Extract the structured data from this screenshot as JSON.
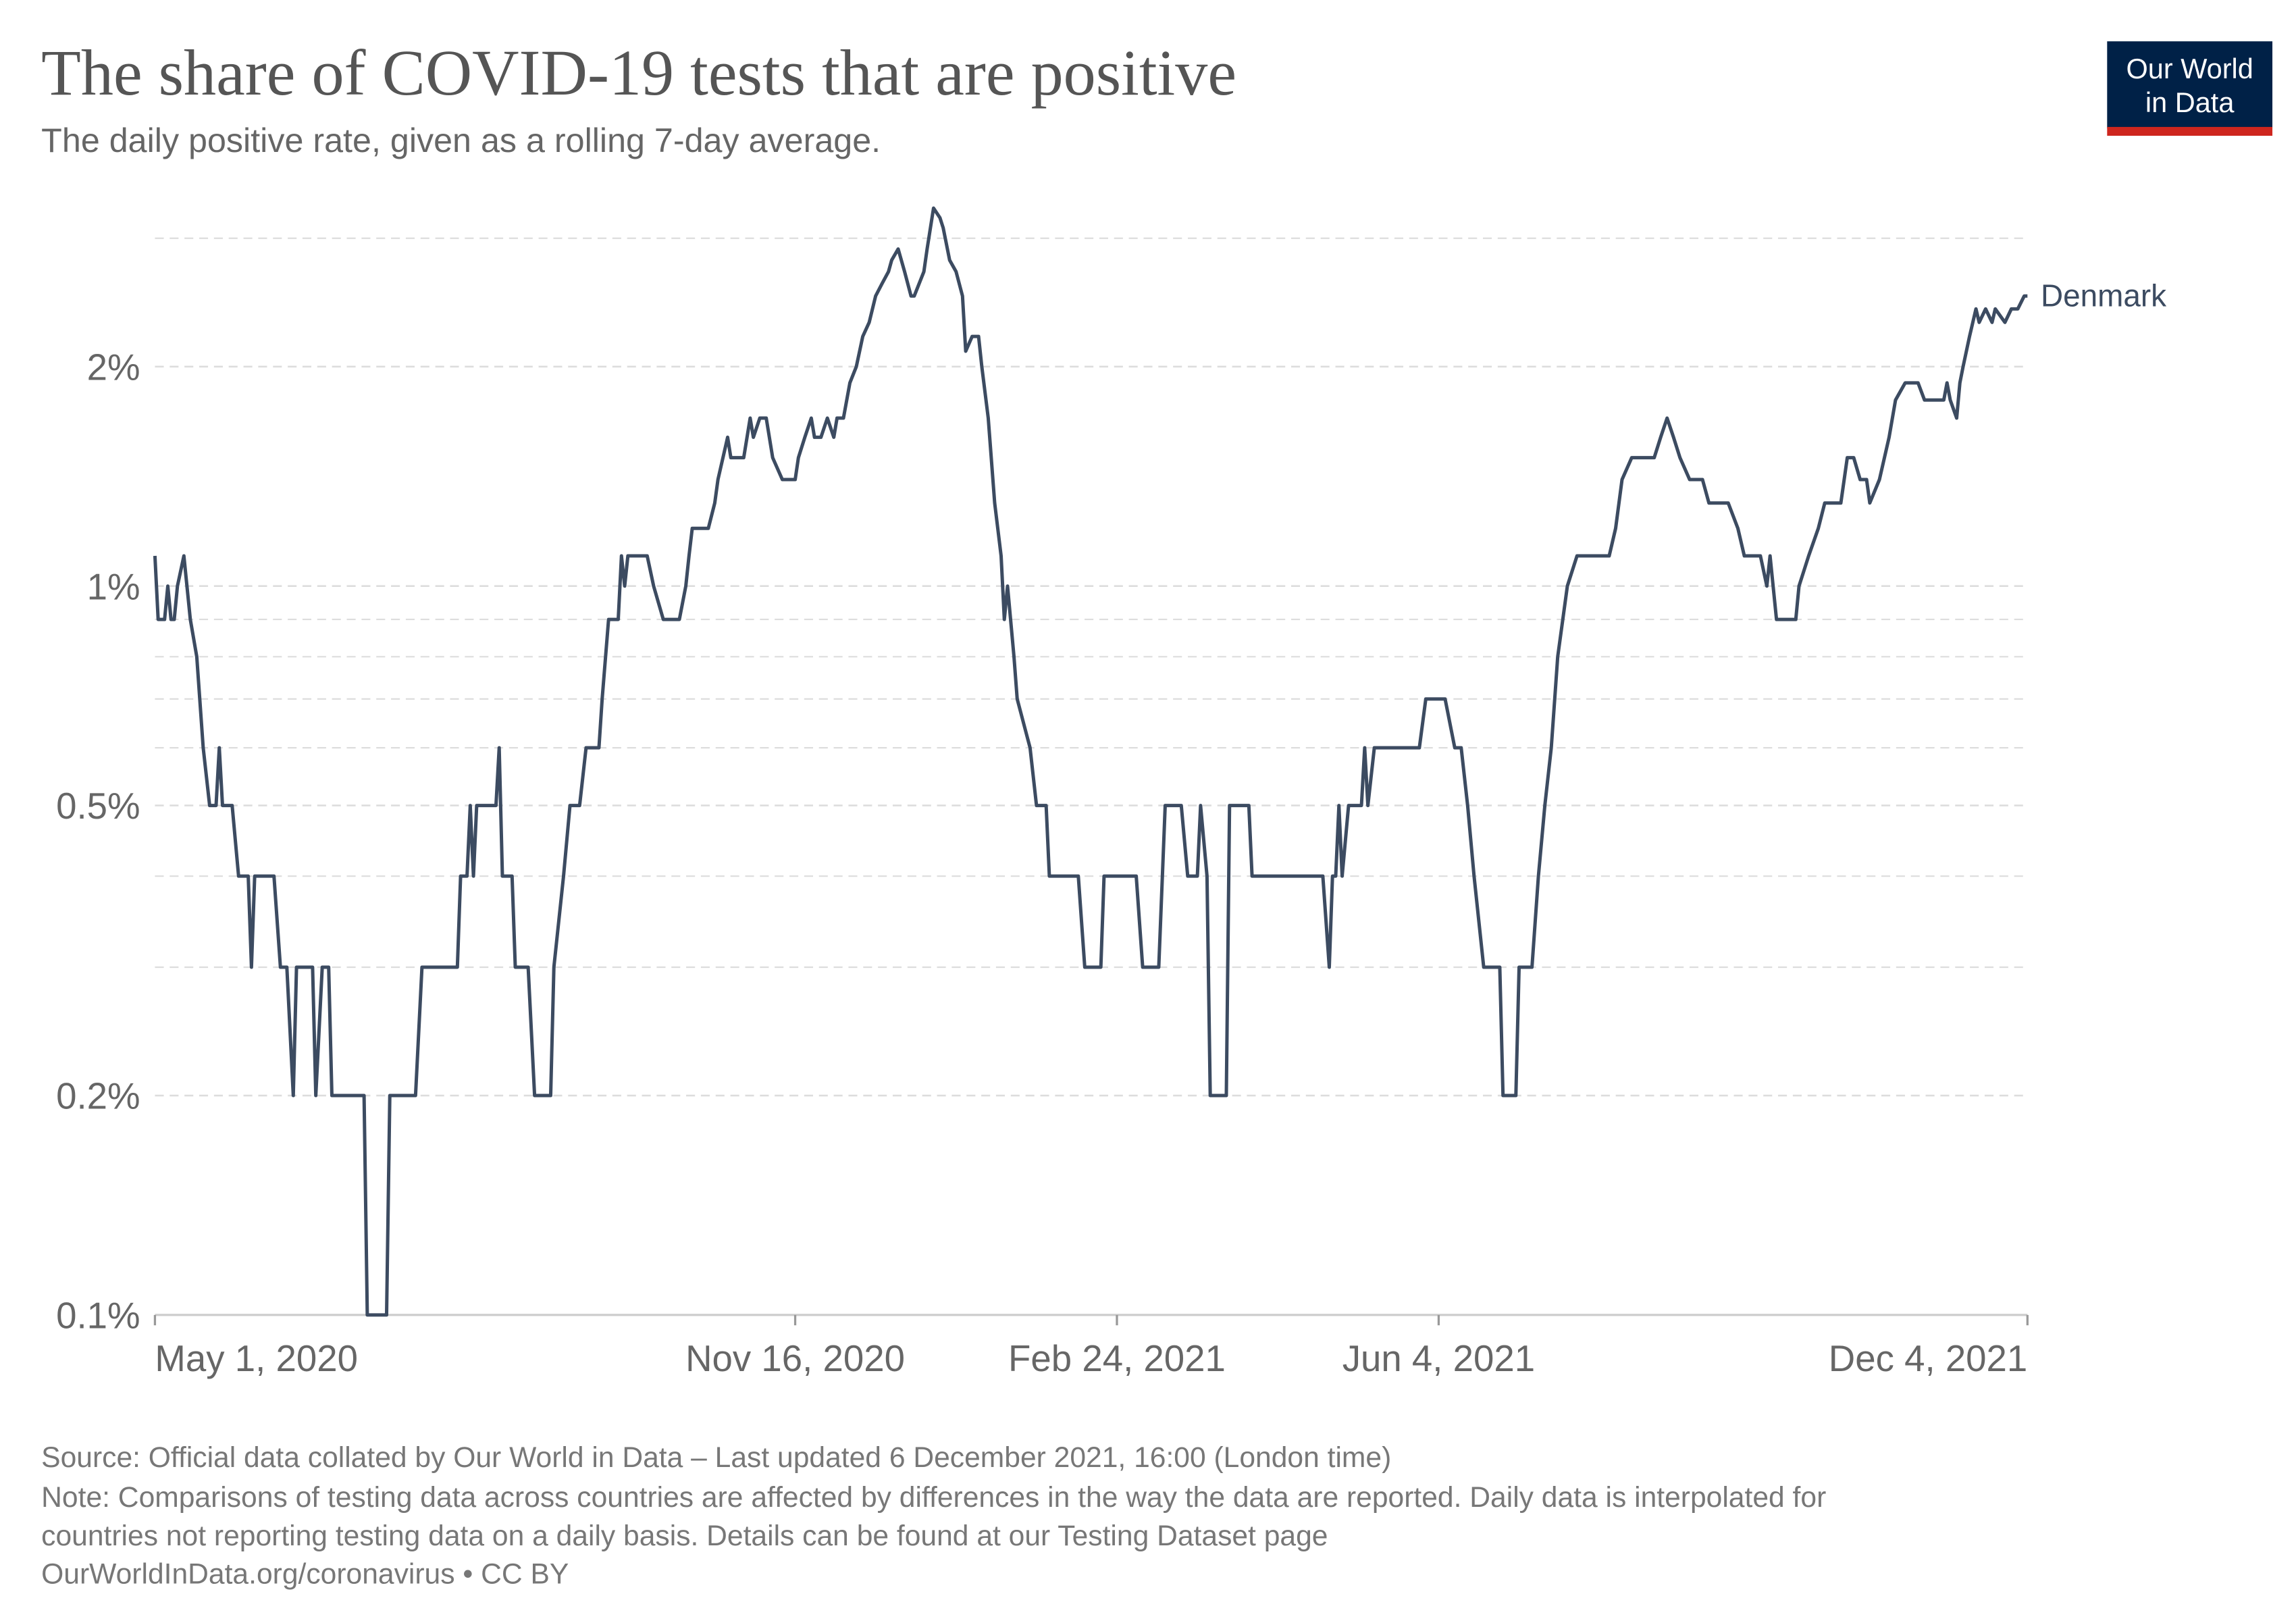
{
  "chart_data": {
    "type": "line",
    "title": "The share of COVID-19 tests that are positive",
    "subtitle": "The daily positive rate, given as a rolling 7-day average.",
    "source": "Source: Official data collated by Our World in Data – Last updated 6 December 2021, 16:00 (London time)",
    "note": [
      "Note: Comparisons of testing data across countries are affected by differences in the way the data are reported. Daily data is interpolated for",
      "countries not reporting testing data on a daily basis. Details can be found at our Testing Dataset page"
    ],
    "credit": "OurWorldInData.org/coronavirus • CC BY",
    "logo": [
      "Our World",
      "in Data"
    ],
    "yscale": "log",
    "grid": true,
    "ylim": [
      0.1,
      3.3
    ],
    "yticks": [
      {
        "value": 0.1,
        "label": "0.1%"
      },
      {
        "value": 0.2,
        "label": "0.2%"
      },
      {
        "value": 0.5,
        "label": "0.5%"
      },
      {
        "value": 1,
        "label": "1%"
      },
      {
        "value": 2,
        "label": "2%"
      }
    ],
    "minor_gridlines": [
      0.3,
      0.4,
      0.6,
      0.7,
      0.8,
      0.9,
      3
    ],
    "xlim": [
      "2020-05-01",
      "2021-12-04"
    ],
    "xticks": [
      {
        "value": "2020-05-01",
        "label": "May 1, 2020"
      },
      {
        "value": "2020-11-16",
        "label": "Nov 16, 2020"
      },
      {
        "value": "2021-02-24",
        "label": "Feb 24, 2021"
      },
      {
        "value": "2021-06-04",
        "label": "Jun 4, 2021"
      },
      {
        "value": "2021-12-04",
        "label": "Dec 4, 2021"
      }
    ],
    "x": [
      "2020-05-01",
      "2020-05-02",
      "2020-05-04",
      "2020-05-05",
      "2020-05-06",
      "2020-05-07",
      "2020-05-08",
      "2020-05-10",
      "2020-05-12",
      "2020-05-14",
      "2020-05-16",
      "2020-05-18",
      "2020-05-20",
      "2020-05-21",
      "2020-05-22",
      "2020-05-25",
      "2020-05-27",
      "2020-05-30",
      "2020-05-31",
      "2020-06-01",
      "2020-06-07",
      "2020-06-09",
      "2020-06-11",
      "2020-06-13",
      "2020-06-14",
      "2020-06-19",
      "2020-06-20",
      "2020-06-22",
      "2020-06-24",
      "2020-06-25",
      "2020-07-05",
      "2020-07-06",
      "2020-07-12",
      "2020-07-13",
      "2020-07-21",
      "2020-07-23",
      "2020-08-03",
      "2020-08-04",
      "2020-08-06",
      "2020-08-07",
      "2020-08-08",
      "2020-08-09",
      "2020-08-15",
      "2020-08-16",
      "2020-08-17",
      "2020-08-20",
      "2020-08-21",
      "2020-08-25",
      "2020-08-27",
      "2020-09-01",
      "2020-09-02",
      "2020-09-05",
      "2020-09-07",
      "2020-09-10",
      "2020-09-12",
      "2020-09-16",
      "2020-09-17",
      "2020-09-19",
      "2020-09-22",
      "2020-09-23",
      "2020-09-24",
      "2020-09-25",
      "2020-10-01",
      "2020-10-03",
      "2020-10-06",
      "2020-10-11",
      "2020-10-13",
      "2020-10-14",
      "2020-10-15",
      "2020-10-20",
      "2020-10-22",
      "2020-10-23",
      "2020-10-26",
      "2020-10-27",
      "2020-10-31",
      "2020-11-02",
      "2020-11-03",
      "2020-11-05",
      "2020-11-07",
      "2020-11-09",
      "2020-11-12",
      "2020-11-16",
      "2020-11-17",
      "2020-11-19",
      "2020-11-21",
      "2020-11-22",
      "2020-11-24",
      "2020-11-26",
      "2020-11-28",
      "2020-11-29",
      "2020-12-01",
      "2020-12-03",
      "2020-12-05",
      "2020-12-07",
      "2020-12-09",
      "2020-12-11",
      "2020-12-13",
      "2020-12-15",
      "2020-12-16",
      "2020-12-18",
      "2020-12-20",
      "2020-12-22",
      "2020-12-23",
      "2020-12-26",
      "2020-12-27",
      "2020-12-29",
      "2020-12-31",
      "2021-01-01",
      "2021-01-03",
      "2021-01-05",
      "2021-01-07",
      "2021-01-08",
      "2021-01-10",
      "2021-01-12",
      "2021-01-13",
      "2021-01-15",
      "2021-01-17",
      "2021-01-19",
      "2021-01-20",
      "2021-01-21",
      "2021-01-23",
      "2021-01-24",
      "2021-01-28",
      "2021-01-30",
      "2021-02-02",
      "2021-02-03",
      "2021-02-12",
      "2021-02-14",
      "2021-02-19",
      "2021-02-20",
      "2021-03-02",
      "2021-03-04",
      "2021-03-09",
      "2021-03-11",
      "2021-03-16",
      "2021-03-18",
      "2021-03-21",
      "2021-03-22",
      "2021-03-24",
      "2021-03-25",
      "2021-03-30",
      "2021-03-31",
      "2021-04-06",
      "2021-04-07",
      "2021-04-29",
      "2021-05-01",
      "2021-05-02",
      "2021-05-03",
      "2021-05-04",
      "2021-05-05",
      "2021-05-07",
      "2021-05-11",
      "2021-05-12",
      "2021-05-13",
      "2021-05-15",
      "2021-05-29",
      "2021-05-31",
      "2021-06-06",
      "2021-06-09",
      "2021-06-11",
      "2021-06-13",
      "2021-06-15",
      "2021-06-18",
      "2021-06-23",
      "2021-06-24",
      "2021-06-28",
      "2021-06-29",
      "2021-07-03",
      "2021-07-05",
      "2021-07-07",
      "2021-07-09",
      "2021-07-11",
      "2021-07-14",
      "2021-07-17",
      "2021-07-27",
      "2021-07-29",
      "2021-07-31",
      "2021-08-03",
      "2021-08-10",
      "2021-08-12",
      "2021-08-14",
      "2021-08-16",
      "2021-08-18",
      "2021-08-21",
      "2021-08-25",
      "2021-08-27",
      "2021-09-02",
      "2021-09-05",
      "2021-09-07",
      "2021-09-12",
      "2021-09-14",
      "2021-09-15",
      "2021-09-17",
      "2021-09-23",
      "2021-09-24",
      "2021-09-27",
      "2021-09-30",
      "2021-10-02",
      "2021-10-07",
      "2021-10-09",
      "2021-10-11",
      "2021-10-13",
      "2021-10-15",
      "2021-10-16",
      "2021-10-19",
      "2021-10-22",
      "2021-10-24",
      "2021-10-27",
      "2021-10-31",
      "2021-11-02",
      "2021-11-08",
      "2021-11-09",
      "2021-11-10",
      "2021-11-12",
      "2021-11-13",
      "2021-11-14",
      "2021-11-16",
      "2021-11-18",
      "2021-11-19",
      "2021-11-21",
      "2021-11-23",
      "2021-11-24",
      "2021-11-27",
      "2021-11-29",
      "2021-12-01",
      "2021-12-03",
      "2021-12-04"
    ],
    "series": [
      {
        "name": "Denmark",
        "color": "#3c4b61",
        "values": [
          1.1,
          0.9,
          0.9,
          1.0,
          0.9,
          0.9,
          1.0,
          1.1,
          0.9,
          0.8,
          0.6,
          0.5,
          0.5,
          0.6,
          0.5,
          0.5,
          0.4,
          0.4,
          0.3,
          0.4,
          0.4,
          0.3,
          0.3,
          0.2,
          0.3,
          0.3,
          0.2,
          0.3,
          0.3,
          0.2,
          0.2,
          0.1,
          0.1,
          0.2,
          0.2,
          0.3,
          0.3,
          0.4,
          0.4,
          0.5,
          0.4,
          0.5,
          0.5,
          0.6,
          0.4,
          0.4,
          0.3,
          0.3,
          0.2,
          0.2,
          0.3,
          0.4,
          0.5,
          0.5,
          0.6,
          0.6,
          0.7,
          0.9,
          0.9,
          1.1,
          1.0,
          1.1,
          1.1,
          1.0,
          0.9,
          0.9,
          1.0,
          1.1,
          1.2,
          1.2,
          1.3,
          1.4,
          1.6,
          1.5,
          1.5,
          1.7,
          1.6,
          1.7,
          1.7,
          1.5,
          1.4,
          1.4,
          1.5,
          1.6,
          1.7,
          1.6,
          1.6,
          1.7,
          1.6,
          1.7,
          1.7,
          1.9,
          2.0,
          2.2,
          2.3,
          2.5,
          2.6,
          2.7,
          2.8,
          2.9,
          2.7,
          2.5,
          2.5,
          2.7,
          2.9,
          3.3,
          3.2,
          3.1,
          2.8,
          2.7,
          2.5,
          2.1,
          2.2,
          2.2,
          2.0,
          1.7,
          1.3,
          1.1,
          0.9,
          1.0,
          0.8,
          0.7,
          0.6,
          0.5,
          0.5,
          0.4,
          0.4,
          0.3,
          0.3,
          0.4,
          0.4,
          0.3,
          0.3,
          0.5,
          0.5,
          0.4,
          0.4,
          0.5,
          0.4,
          0.2,
          0.2,
          0.5,
          0.5,
          0.4,
          0.4,
          0.3,
          0.4,
          0.4,
          0.5,
          0.4,
          0.5,
          0.5,
          0.6,
          0.5,
          0.6,
          0.6,
          0.7,
          0.7,
          0.6,
          0.6,
          0.5,
          0.4,
          0.3,
          0.3,
          0.2,
          0.2,
          0.3,
          0.3,
          0.4,
          0.5,
          0.6,
          0.8,
          1.0,
          1.1,
          1.1,
          1.2,
          1.4,
          1.5,
          1.5,
          1.6,
          1.7,
          1.6,
          1.5,
          1.4,
          1.4,
          1.3,
          1.3,
          1.2,
          1.1,
          1.1,
          1.0,
          1.1,
          0.9,
          0.9,
          1.0,
          1.1,
          1.2,
          1.3,
          1.3,
          1.5,
          1.5,
          1.4,
          1.4,
          1.3,
          1.4,
          1.6,
          1.8,
          1.9,
          1.9,
          1.8,
          1.8,
          1.9,
          1.8,
          1.7,
          1.9,
          2.0,
          2.2,
          2.4,
          2.3,
          2.4,
          2.3,
          2.4,
          2.3,
          2.4,
          2.4,
          2.5,
          2.5
        ]
      }
    ]
  }
}
